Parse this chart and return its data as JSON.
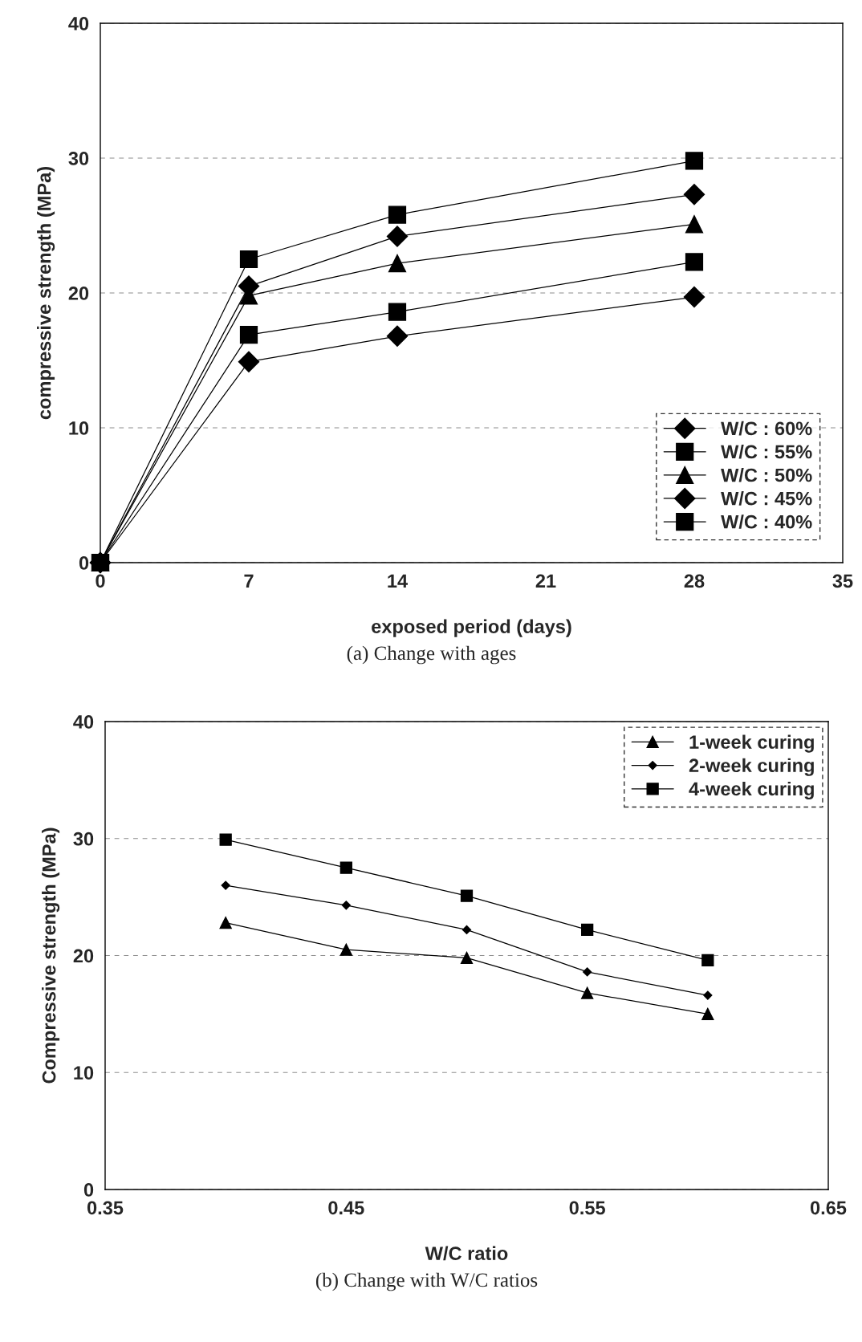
{
  "chart_data": [
    {
      "type": "line",
      "xlabel": "exposed period (days)",
      "ylabel": "compressive strength (MPa)",
      "x": [
        0,
        7,
        14,
        28
      ],
      "xlim": [
        0,
        35
      ],
      "xticks": [
        0,
        7,
        14,
        21,
        28,
        35
      ],
      "ylim": [
        0,
        40
      ],
      "yticks": [
        0,
        10,
        20,
        30,
        40
      ],
      "grid": "y",
      "legend": "bottom right",
      "annotations": [
        "(a) Change with ages"
      ],
      "series": [
        {
          "name": "W/C : 60%",
          "color": "#000000",
          "marker": "diamond",
          "values": [
            0,
            14.9,
            16.8,
            19.7
          ]
        },
        {
          "name": "W/C : 55%",
          "color": "#000000",
          "marker": "square",
          "values": [
            0,
            16.9,
            18.6,
            22.3
          ]
        },
        {
          "name": "W/C : 50%",
          "color": "#000000",
          "marker": "triangle",
          "values": [
            0,
            19.8,
            22.2,
            25.1
          ]
        },
        {
          "name": "W/C : 45%",
          "color": "#000000",
          "marker": "diamond",
          "values": [
            0,
            20.5,
            24.2,
            27.3
          ]
        },
        {
          "name": "W/C : 40%",
          "color": "#000000",
          "marker": "square",
          "values": [
            0,
            22.5,
            25.8,
            29.8
          ]
        }
      ]
    },
    {
      "type": "line",
      "xlabel": "W/C ratio",
      "ylabel": "Compressive strength (MPa)",
      "x": [
        0.4,
        0.45,
        0.5,
        0.55,
        0.6
      ],
      "xlim": [
        0.35,
        0.65
      ],
      "xticks": [
        {
          "value": 0.35,
          "label": "0.35"
        },
        {
          "value": 0.45,
          "label": "0.45"
        },
        {
          "value": 0.55,
          "label": "0.55"
        },
        {
          "value": 0.65,
          "label": "0.65"
        }
      ],
      "ylim": [
        0,
        40
      ],
      "yticks": [
        0,
        10,
        20,
        30,
        40
      ],
      "grid": "y",
      "legend": "top right",
      "annotations": [
        "(b) Change with W/C ratios"
      ],
      "series": [
        {
          "name": "1-week curing",
          "color": "#000000",
          "marker": "triangle",
          "values": [
            22.8,
            20.5,
            19.8,
            16.8,
            15.0
          ]
        },
        {
          "name": "2-week curing",
          "color": "#000000",
          "marker": "diamond",
          "values": [
            26.0,
            24.3,
            22.2,
            18.6,
            16.6
          ]
        },
        {
          "name": "4-week curing",
          "color": "#000000",
          "marker": "square",
          "values": [
            29.9,
            27.5,
            25.1,
            22.2,
            19.6
          ]
        }
      ]
    }
  ]
}
